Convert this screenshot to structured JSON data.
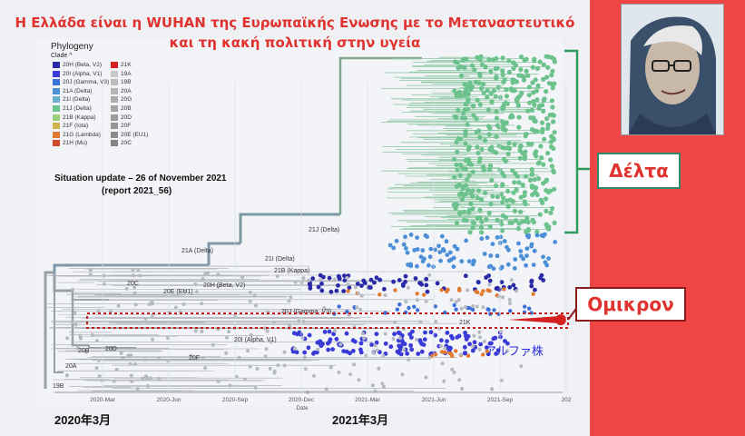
{
  "header": {
    "line1": "Η Ελλάδα είναι η WUHAN της Ευρωπαϊκής Ενωσης με το Μεταναστευτικό",
    "line2": "και τη  κακή πολιτική στην υγεία"
  },
  "legend": {
    "title": "Phylogeny",
    "subtitle": "Clade",
    "items": [
      {
        "label": "20H (Beta, V2)",
        "color": "#2a2aa8"
      },
      {
        "label": "20I (Alpha, V1)",
        "color": "#3a3ad8"
      },
      {
        "label": "20J (Gamma, V3)",
        "color": "#3a70d8"
      },
      {
        "label": "21A (Delta)",
        "color": "#4d8fd6"
      },
      {
        "label": "21I (Delta)",
        "color": "#6aaed0"
      },
      {
        "label": "21J (Delta)",
        "color": "#6cc28c"
      },
      {
        "label": "21B (Kappa)",
        "color": "#9bd07a"
      },
      {
        "label": "21F (Iota)",
        "color": "#d0b050"
      },
      {
        "label": "21G (Lambda)",
        "color": "#e07a30"
      },
      {
        "label": "21H (Mu)",
        "color": "#d04a2a"
      },
      {
        "label": "21K",
        "color": "#d42020"
      },
      {
        "label": "19A",
        "color": "#c8c8c8"
      },
      {
        "label": "19B",
        "color": "#bcbcbc"
      },
      {
        "label": "20A",
        "color": "#b4b4b4"
      },
      {
        "label": "20G",
        "color": "#acacac"
      },
      {
        "label": "20B",
        "color": "#a4a4a4"
      },
      {
        "label": "20D",
        "color": "#9c9c9c"
      },
      {
        "label": "20F",
        "color": "#949494"
      },
      {
        "label": "20E (EU1)",
        "color": "#8c8c8c"
      },
      {
        "label": "20C",
        "color": "#848484"
      }
    ]
  },
  "situation": {
    "line1": "Situation update – 26 of November 2021",
    "line2": "(report 2021_56)"
  },
  "chart_data": {
    "type": "scatter",
    "title": "Phylogeny",
    "xlabel": "Date",
    "ylabel": "",
    "x_ticks": [
      "2020-Mar",
      "2020-Jun",
      "2020-Sep",
      "2020-Dec",
      "2021-Mar",
      "2021-Jun",
      "2021-Sep",
      "202"
    ],
    "clade_labels": [
      "21J (Delta)",
      "21A (Delta)",
      "21I (Delta)",
      "21B (Kappa)",
      "20H (Beta, V2)",
      "20C",
      "20E (EU1)",
      "20J (Gamma, V3)",
      "20I (Alpha, V1)",
      "21K",
      "20B",
      "20D",
      "20A",
      "19B",
      "20F"
    ],
    "series": [
      {
        "name": "21J (Delta)",
        "color": "#6cc28c",
        "x_range": [
          "2021-Apr",
          "2021-Nov"
        ]
      },
      {
        "name": "21I / 21A (Delta)",
        "color": "#4d8fd6",
        "x_range": [
          "2021-Mar",
          "2021-Nov"
        ]
      },
      {
        "name": "20H (Beta, V2)",
        "color": "#2a2aa8",
        "x_range": [
          "2020-Dec",
          "2021-Oct"
        ]
      },
      {
        "name": "20J (Gamma, V3)",
        "color": "#3a70d8",
        "x_range": [
          "2020-Dec",
          "2021-Oct"
        ]
      },
      {
        "name": "20I (Alpha, V1)",
        "color": "#3a3ad8",
        "x_range": [
          "2020-Nov",
          "2021-Sep"
        ]
      },
      {
        "name": "21K",
        "color": "#d42020",
        "x_range": [
          "2021-Nov",
          "2021-Nov"
        ]
      }
    ]
  },
  "annotations": {
    "delta": "Δέλτα",
    "omicron": "Ομικρον",
    "alpha_kabu": "アルファ株",
    "start_date": "2020年3月",
    "mid_date": "2021年3月"
  }
}
